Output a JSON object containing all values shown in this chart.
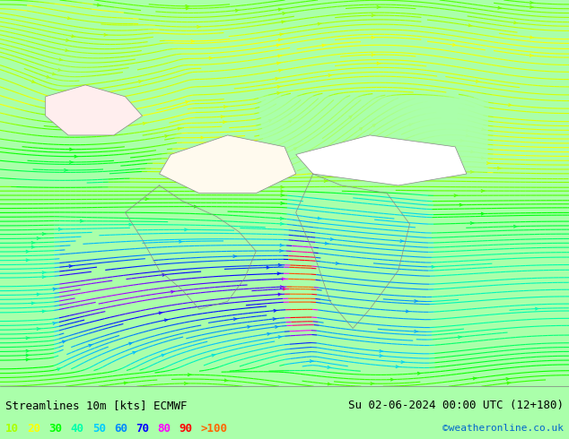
{
  "title_left": "Streamlines 10m [kts] ECMWF",
  "title_right": "Su 02-06-2024 00:00 UTC (12+180)",
  "credit": "©weatheronline.co.uk",
  "legend_values": [
    "10",
    "20",
    "30",
    "40",
    "50",
    "60",
    "70",
    "80",
    "90",
    ">100"
  ],
  "legend_colors": [
    "#aaff00",
    "#ffff00",
    "#00ff00",
    "#00ffaa",
    "#00ccff",
    "#0088ff",
    "#0000ff",
    "#ff00ff",
    "#ff0000",
    "#ff6600"
  ],
  "bg_color": "#aaffaa",
  "map_bg": "#aaffaa",
  "bottom_bar_color": "#ffffff",
  "figsize": [
    6.34,
    4.9
  ],
  "dpi": 100
}
